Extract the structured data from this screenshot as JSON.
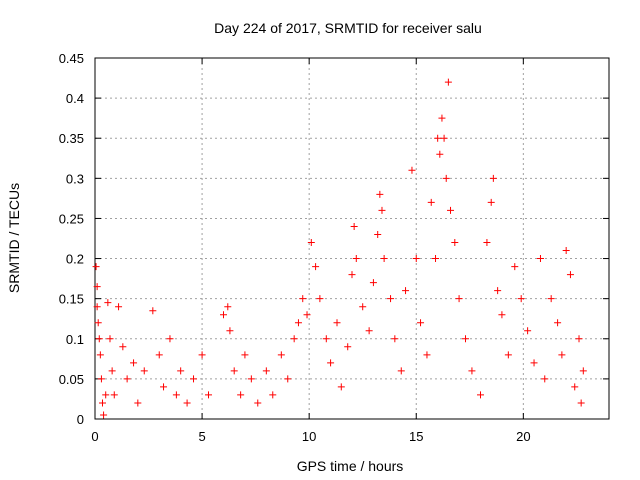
{
  "chart_data": {
    "type": "scatter",
    "title": "Day 224 of 2017, SRMTID for receiver salu",
    "xlabel": "GPS time / hours",
    "ylabel": "SRMTID / TECUs",
    "xlim": [
      0,
      24
    ],
    "ylim": [
      0,
      0.45
    ],
    "xticks": [
      0,
      5,
      10,
      15,
      20
    ],
    "xtick_labels": [
      "0",
      "5",
      "10",
      "15",
      "20"
    ],
    "yticks": [
      0,
      0.05,
      0.1,
      0.15,
      0.2,
      0.25,
      0.3,
      0.35,
      0.4,
      0.45
    ],
    "ytick_labels": [
      "0",
      "0.05",
      "0.1",
      "0.15",
      "0.2",
      "0.25",
      "0.3",
      "0.35",
      "0.4",
      "0.45"
    ],
    "grid": true,
    "marker": "+",
    "color": "#ff0000",
    "series": [
      {
        "name": "SRMTID",
        "points": [
          [
            0.05,
            0.19
          ],
          [
            0.1,
            0.165
          ],
          [
            0.1,
            0.14
          ],
          [
            0.15,
            0.12
          ],
          [
            0.2,
            0.1
          ],
          [
            0.25,
            0.08
          ],
          [
            0.3,
            0.05
          ],
          [
            0.35,
            0.02
          ],
          [
            0.4,
            0.005
          ],
          [
            0.5,
            0.03
          ],
          [
            0.6,
            0.145
          ],
          [
            0.7,
            0.1
          ],
          [
            0.8,
            0.06
          ],
          [
            0.9,
            0.03
          ],
          [
            1.1,
            0.14
          ],
          [
            1.3,
            0.09
          ],
          [
            1.5,
            0.05
          ],
          [
            1.8,
            0.07
          ],
          [
            2.0,
            0.02
          ],
          [
            2.3,
            0.06
          ],
          [
            2.7,
            0.135
          ],
          [
            3.0,
            0.08
          ],
          [
            3.2,
            0.04
          ],
          [
            3.5,
            0.1
          ],
          [
            3.8,
            0.03
          ],
          [
            4.0,
            0.06
          ],
          [
            4.3,
            0.02
          ],
          [
            4.6,
            0.05
          ],
          [
            5.0,
            0.08
          ],
          [
            5.3,
            0.03
          ],
          [
            6.0,
            0.13
          ],
          [
            6.2,
            0.14
          ],
          [
            6.3,
            0.11
          ],
          [
            6.5,
            0.06
          ],
          [
            6.8,
            0.03
          ],
          [
            7.0,
            0.08
          ],
          [
            7.3,
            0.05
          ],
          [
            7.6,
            0.02
          ],
          [
            8.0,
            0.06
          ],
          [
            8.3,
            0.03
          ],
          [
            8.7,
            0.08
          ],
          [
            9.0,
            0.05
          ],
          [
            9.3,
            0.1
          ],
          [
            9.5,
            0.12
          ],
          [
            9.7,
            0.15
          ],
          [
            9.9,
            0.13
          ],
          [
            10.1,
            0.22
          ],
          [
            10.3,
            0.19
          ],
          [
            10.5,
            0.15
          ],
          [
            10.8,
            0.1
          ],
          [
            11.0,
            0.07
          ],
          [
            11.3,
            0.12
          ],
          [
            11.5,
            0.04
          ],
          [
            11.8,
            0.09
          ],
          [
            12.0,
            0.18
          ],
          [
            12.1,
            0.24
          ],
          [
            12.2,
            0.2
          ],
          [
            12.5,
            0.14
          ],
          [
            12.8,
            0.11
          ],
          [
            13.0,
            0.17
          ],
          [
            13.2,
            0.23
          ],
          [
            13.3,
            0.28
          ],
          [
            13.4,
            0.26
          ],
          [
            13.5,
            0.2
          ],
          [
            13.8,
            0.15
          ],
          [
            14.0,
            0.1
          ],
          [
            14.3,
            0.06
          ],
          [
            14.5,
            0.16
          ],
          [
            14.8,
            0.31
          ],
          [
            15.0,
            0.2
          ],
          [
            15.2,
            0.12
          ],
          [
            15.5,
            0.08
          ],
          [
            15.7,
            0.27
          ],
          [
            15.9,
            0.2
          ],
          [
            16.0,
            0.35
          ],
          [
            16.1,
            0.33
          ],
          [
            16.2,
            0.375
          ],
          [
            16.3,
            0.35
          ],
          [
            16.4,
            0.3
          ],
          [
            16.5,
            0.42
          ],
          [
            16.6,
            0.26
          ],
          [
            16.8,
            0.22
          ],
          [
            17.0,
            0.15
          ],
          [
            17.3,
            0.1
          ],
          [
            17.6,
            0.06
          ],
          [
            18.0,
            0.03
          ],
          [
            18.3,
            0.22
          ],
          [
            18.5,
            0.27
          ],
          [
            18.6,
            0.3
          ],
          [
            18.8,
            0.16
          ],
          [
            19.0,
            0.13
          ],
          [
            19.3,
            0.08
          ],
          [
            19.6,
            0.19
          ],
          [
            19.9,
            0.15
          ],
          [
            20.2,
            0.11
          ],
          [
            20.5,
            0.07
          ],
          [
            20.8,
            0.2
          ],
          [
            21.0,
            0.05
          ],
          [
            21.3,
            0.15
          ],
          [
            21.6,
            0.12
          ],
          [
            21.8,
            0.08
          ],
          [
            22.0,
            0.21
          ],
          [
            22.2,
            0.18
          ],
          [
            22.4,
            0.04
          ],
          [
            22.6,
            0.1
          ],
          [
            22.7,
            0.02
          ],
          [
            22.8,
            0.06
          ]
        ]
      }
    ]
  }
}
